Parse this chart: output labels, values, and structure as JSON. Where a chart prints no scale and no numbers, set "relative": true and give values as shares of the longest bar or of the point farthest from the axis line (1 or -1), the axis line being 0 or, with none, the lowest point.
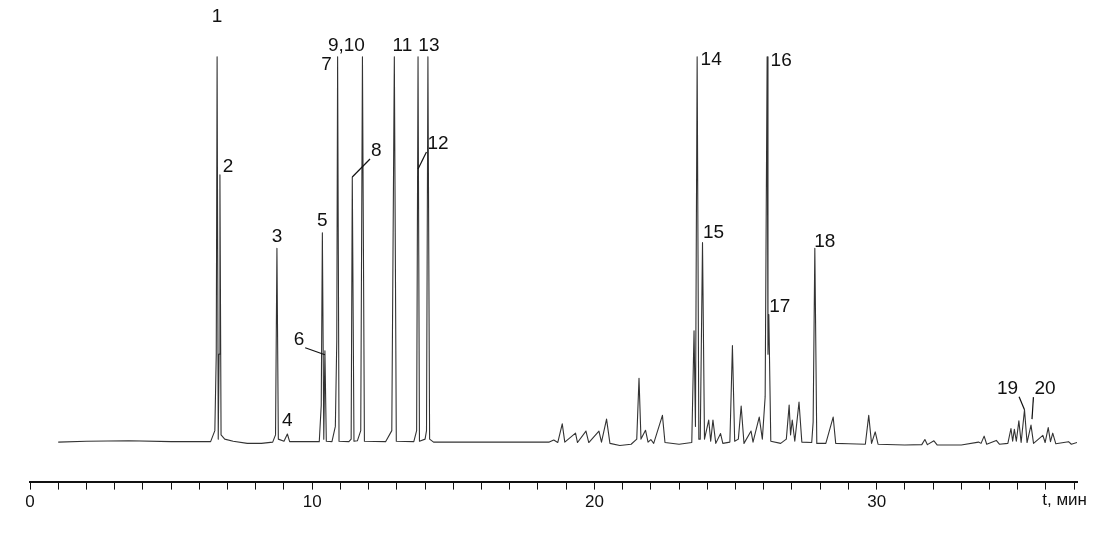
{
  "chart_data": {
    "type": "line",
    "relative": true,
    "xlabel": "t, мин",
    "xlim": [
      0,
      37.1
    ],
    "xticks": [
      0,
      {
        "value": 1,
        "label": null
      },
      {
        "value": 2,
        "label": null
      },
      {
        "value": 3,
        "label": null
      },
      {
        "value": 4,
        "label": null
      },
      {
        "value": 5,
        "label": null
      },
      {
        "value": 6,
        "label": null
      },
      {
        "value": 7,
        "label": null
      },
      {
        "value": 8,
        "label": null
      },
      {
        "value": 9,
        "label": null
      },
      10,
      {
        "value": 11,
        "label": null
      },
      {
        "value": 12,
        "label": null
      },
      {
        "value": 13,
        "label": null
      },
      {
        "value": 14,
        "label": null
      },
      {
        "value": 15,
        "label": null
      },
      {
        "value": 16,
        "label": null
      },
      {
        "value": 17,
        "label": null
      },
      {
        "value": 18,
        "label": null
      },
      {
        "value": 19,
        "label": null
      },
      20,
      {
        "value": 21,
        "label": null
      },
      {
        "value": 22,
        "label": null
      },
      {
        "value": 23,
        "label": null
      },
      {
        "value": 24,
        "label": null
      },
      {
        "value": 25,
        "label": null
      },
      {
        "value": 26,
        "label": null
      },
      {
        "value": 27,
        "label": null
      },
      {
        "value": 28,
        "label": null
      },
      {
        "value": 29,
        "label": null
      },
      30,
      {
        "value": 31,
        "label": null
      },
      {
        "value": 32,
        "label": null
      },
      {
        "value": 33,
        "label": null
      },
      {
        "value": 34,
        "label": null
      },
      {
        "value": 35,
        "label": null
      },
      {
        "value": 36,
        "label": null
      },
      {
        "value": 37,
        "label": null
      }
    ],
    "series": [
      {
        "color": "#333333",
        "x": [
          1.0,
          2.0,
          3.5,
          5.0,
          6.4,
          6.55,
          6.6,
          6.63,
          6.67,
          6.7,
          6.73,
          6.77,
          6.9,
          7.2,
          7.7,
          8.2,
          8.6,
          8.7,
          8.75,
          8.8,
          9.0,
          9.12,
          9.2,
          10.25,
          10.32,
          10.36,
          10.41,
          10.45,
          10.5,
          10.7,
          10.82,
          10.87,
          10.9,
          10.95,
          11.3,
          11.38,
          11.42,
          11.48,
          11.6,
          11.72,
          11.78,
          11.85,
          12.6,
          12.82,
          12.91,
          12.98,
          13.6,
          13.7,
          13.75,
          13.8,
          14.0,
          14.05,
          14.1,
          14.16,
          14.3,
          16,
          17.5,
          18.4,
          18.56,
          18.7,
          18.86,
          18.95,
          19.33,
          19.4,
          19.7,
          19.8,
          20.16,
          20.25,
          20.43,
          20.55,
          20.9,
          21.3,
          21.5,
          21.58,
          21.65,
          21.81,
          21.9,
          22.0,
          22.1,
          22.41,
          22.5,
          23.0,
          23.45,
          23.53,
          23.58,
          23.64,
          23.7,
          23.75,
          23.83,
          23.9,
          24.05,
          24.12,
          24.2,
          24.3,
          24.47,
          24.55,
          24.8,
          24.89,
          24.97,
          25.1,
          25.2,
          25.3,
          25.55,
          25.62,
          25.84,
          25.95,
          26.05,
          26.12,
          26.15,
          26.18,
          26.25,
          26.6,
          26.8,
          26.9,
          26.95,
          27.01,
          27.1,
          27.25,
          27.35,
          27.7,
          27.75,
          27.81,
          27.88,
          28.2,
          28.46,
          28.55,
          29.0,
          29.6,
          29.72,
          29.82,
          29.95,
          30.05,
          31.0,
          31.6,
          31.71,
          31.8,
          32.03,
          32.15,
          33.0,
          33.61,
          33.7,
          33.81,
          33.9,
          34.24,
          34.35,
          34.65,
          34.76,
          34.82,
          34.88,
          34.95,
          35.04,
          35.12,
          35.24,
          35.33,
          35.47,
          35.56,
          35.89,
          35.97,
          36.08,
          36.16,
          36.24,
          36.35,
          36.8,
          36.9,
          37.1
        ],
        "values": [
          0.093,
          0.095,
          0.096,
          0.094,
          0.094,
          0.12,
          0.3,
          1,
          0.1,
          0.3,
          0.722,
          0.11,
          0.1,
          0.095,
          0.09,
          0.09,
          0.093,
          0.11,
          0.549,
          0.1,
          0.095,
          0.112,
          0.094,
          0.094,
          0.18,
          0.586,
          0.1,
          0.308,
          0.095,
          0.094,
          0.13,
          0.33,
          1,
          0.095,
          0.094,
          0.1,
          0.717,
          0.095,
          0.096,
          0.12,
          1,
          0.095,
          0.094,
          0.12,
          1,
          0.095,
          0.094,
          0.12,
          1,
          0.095,
          0.1,
          0.12,
          1,
          0.1,
          0.093,
          0.093,
          0.093,
          0.093,
          0.098,
          0.092,
          0.136,
          0.093,
          0.114,
          0.092,
          0.119,
          0.092,
          0.119,
          0.093,
          0.147,
          0.09,
          0.085,
          0.088,
          0.1,
          0.243,
          0.1,
          0.121,
          0.093,
          0.099,
          0.09,
          0.156,
          0.092,
          0.088,
          0.092,
          0.355,
          0.13,
          1,
          0.1,
          0.1,
          0.563,
          0.1,
          0.145,
          0.095,
          0.145,
          0.09,
          0.113,
          0.09,
          0.093,
          0.32,
          0.095,
          0.1,
          0.178,
          0.09,
          0.119,
          0.093,
          0.152,
          0.1,
          0.2,
          1,
          0.3,
          0.393,
          0.095,
          0.09,
          0.1,
          0.18,
          0.11,
          0.145,
          0.095,
          0.187,
          0.093,
          0.092,
          0.14,
          0.549,
          0.09,
          0.09,
          0.152,
          0.09,
          0.089,
          0.088,
          0.156,
          0.09,
          0.117,
          0.088,
          0.086,
          0.087,
          0.099,
          0.087,
          0.096,
          0.086,
          0.086,
          0.093,
          0.09,
          0.107,
          0.088,
          0.097,
          0.088,
          0.09,
          0.125,
          0.095,
          0.123,
          0.095,
          0.143,
          0.092,
          0.169,
          0.092,
          0.133,
          0.09,
          0.109,
          0.092,
          0.127,
          0.094,
          0.114,
          0.089,
          0.094,
          0.088,
          0.092
        ]
      }
    ],
    "annotations": [
      {
        "text": "1",
        "x": 6.63,
        "y": 1
      },
      {
        "text": "2",
        "x": 6.73,
        "y": 0.722
      },
      {
        "text": "3",
        "x": 8.75,
        "y": 0.549
      },
      {
        "text": "4",
        "x": 9.12,
        "y": 0.112
      },
      {
        "text": "5",
        "x": 10.36,
        "y": 0.586
      },
      {
        "text": "6",
        "x": 10.45,
        "y": 0.308
      },
      {
        "text": "7",
        "x": 10.9,
        "y": 1
      },
      {
        "text": "8",
        "x": 11.42,
        "y": 0.717
      },
      {
        "text": "9,10",
        "x": 11.78,
        "y": 1
      },
      {
        "text": "11",
        "x": 12.91,
        "y": 1
      },
      {
        "text": "12",
        "x": 13.75,
        "y": 0.736
      },
      {
        "text": "13",
        "x": 14.1,
        "y": 1
      },
      {
        "text": "14",
        "x": 23.64,
        "y": 1
      },
      {
        "text": "15",
        "x": 23.83,
        "y": 0.563
      },
      {
        "text": "16",
        "x": 26.12,
        "y": 1
      },
      {
        "text": "17",
        "x": 26.18,
        "y": 0.393
      },
      {
        "text": "18",
        "x": 27.81,
        "y": 0.549
      },
      {
        "text": "19",
        "x": 35.24,
        "y": 0.169
      },
      {
        "text": "20",
        "x": 35.47,
        "y": 0.133
      }
    ]
  }
}
